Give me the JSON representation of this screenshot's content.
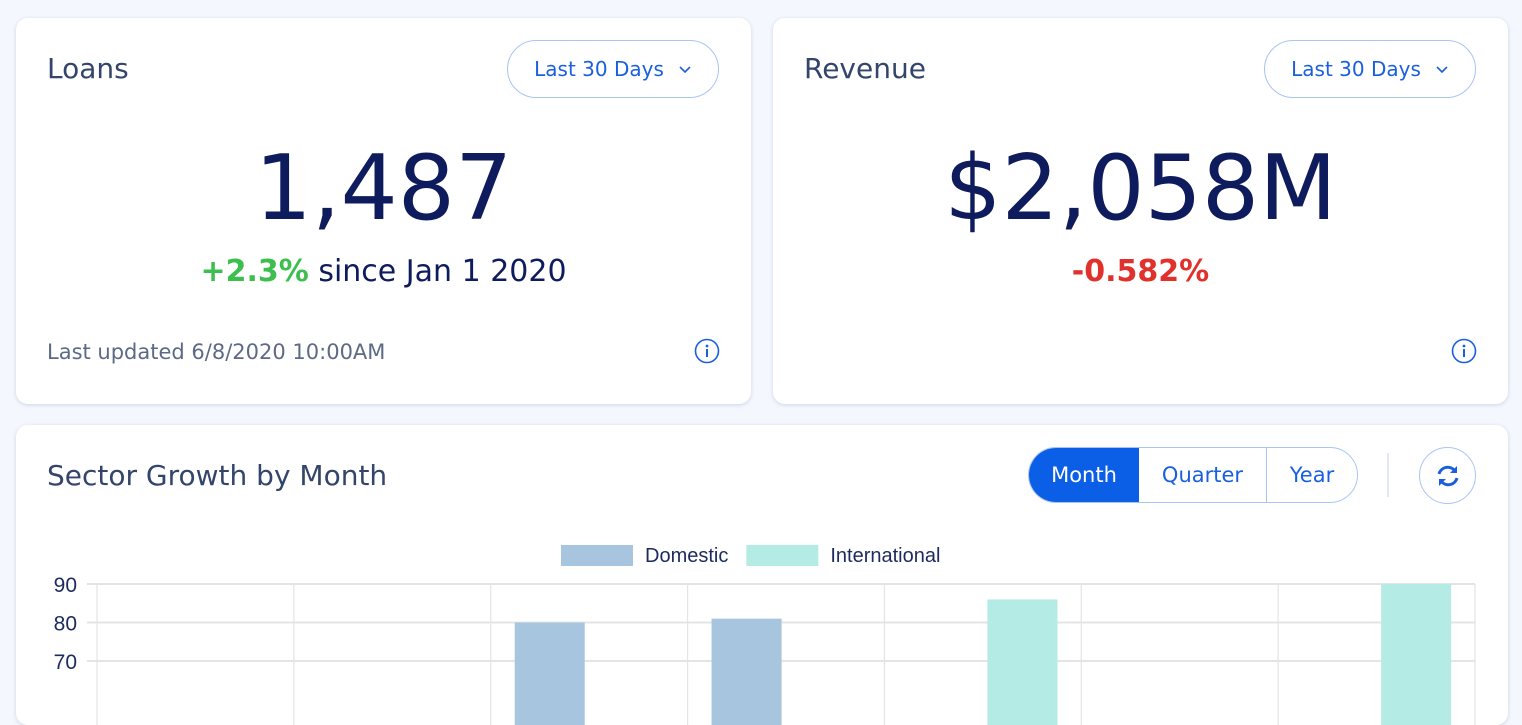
{
  "loans": {
    "title": "Loans",
    "range": "Last 30 Days",
    "value": "1,487",
    "change": "+2.3%",
    "change_suffix": " since Jan 1 2020",
    "updated": "Last updated 6/8/2020 10:00AM"
  },
  "revenue": {
    "title": "Revenue",
    "range": "Last 30 Days",
    "value": "$2,058M",
    "change": "-0.582%"
  },
  "sector": {
    "title": "Sector Growth by Month",
    "toggle": [
      "Month",
      "Quarter",
      "Year"
    ],
    "active": "Month",
    "refresh_icon": "refresh-icon"
  },
  "colors": {
    "accent": "#0b5ee6",
    "positive": "#3cbf4e",
    "negative": "#e1312c",
    "domestic": "#a7c5de",
    "international": "#b4ebe4"
  },
  "chart_data": {
    "type": "bar",
    "title": "",
    "categories": [
      "",
      "",
      "",
      "",
      "",
      "",
      ""
    ],
    "series": [
      {
        "name": "Domestic",
        "values": [
          null,
          null,
          80,
          81,
          null,
          null,
          null
        ]
      },
      {
        "name": "International",
        "values": [
          null,
          null,
          null,
          null,
          86,
          null,
          90
        ]
      }
    ],
    "yticks": [
      "90",
      "80",
      "70"
    ],
    "ylim": [
      60,
      90
    ],
    "grid": true,
    "legend": "top"
  }
}
